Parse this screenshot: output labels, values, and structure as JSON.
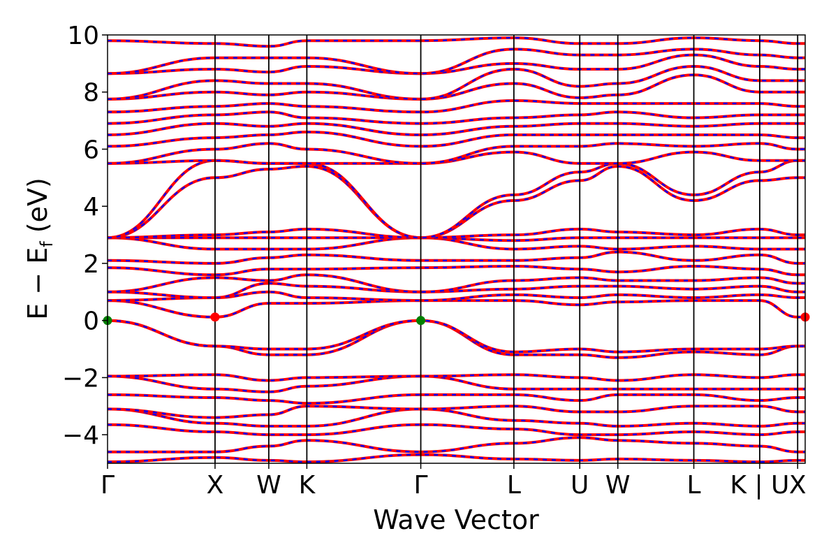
{
  "chart_data": {
    "type": "line",
    "title": "",
    "xlabel": "Wave Vector",
    "ylabel": "E − E",
    "ylabel_sub": "f",
    "ylabel_unit": " (eV)",
    "ylim": [
      -5,
      10
    ],
    "y_ticks": [
      {
        "value": -4,
        "label": "−4"
      },
      {
        "value": -2,
        "label": "−2"
      },
      {
        "value": 0,
        "label": "0"
      },
      {
        "value": 2,
        "label": "2"
      },
      {
        "value": 4,
        "label": "4"
      },
      {
        "value": 6,
        "label": "6"
      },
      {
        "value": 8,
        "label": "8"
      },
      {
        "value": 10,
        "label": "10"
      }
    ],
    "xlim": [
      0,
      6.49
    ],
    "kpoints": [
      {
        "label": "Γ",
        "x": 0.0
      },
      {
        "label": "X",
        "x": 1.0
      },
      {
        "label": "W",
        "x": 1.5
      },
      {
        "label": "K",
        "x": 1.854
      },
      {
        "label": "Γ",
        "x": 2.914
      },
      {
        "label": "L",
        "x": 3.78
      },
      {
        "label": "U",
        "x": 4.393
      },
      {
        "label": "W",
        "x": 4.747
      },
      {
        "label": "L",
        "x": 5.454
      },
      {
        "label": "K | U",
        "x": 6.067
      },
      {
        "label": "X",
        "x": 6.42
      }
    ],
    "band_color_solid": "#ff0000",
    "band_color_dashed": "#0000ff",
    "marker_color_vbm": "#008000",
    "marker_color_cbm": "#ff0000",
    "markers": [
      {
        "kind": "vbm",
        "x": 0.0,
        "y": 0.0
      },
      {
        "kind": "vbm",
        "x": 2.914,
        "y": 0.0
      },
      {
        "kind": "cbm",
        "x": 1.0,
        "y": 0.12
      },
      {
        "kind": "cbm",
        "x": 6.49,
        "y": 0.12
      }
    ],
    "bands": [
      {
        "name": "",
        "y": [
          -4.95,
          -4.8,
          -4.9,
          -4.95,
          -4.7,
          -4.85,
          -4.9,
          -4.85,
          -4.9,
          -4.95,
          -4.9
        ]
      },
      {
        "name": "",
        "y": [
          -4.6,
          -4.6,
          -4.4,
          -4.2,
          -4.6,
          -4.3,
          -4.1,
          -4.2,
          -4.3,
          -4.4,
          -4.6
        ]
      },
      {
        "name": "",
        "y": [
          -3.65,
          -3.9,
          -4.0,
          -4.0,
          -3.65,
          -3.8,
          -4.0,
          -4.0,
          -3.9,
          -4.0,
          -3.9
        ]
      },
      {
        "name": "",
        "y": [
          -3.1,
          -3.6,
          -3.7,
          -3.7,
          -3.1,
          -3.5,
          -3.6,
          -3.7,
          -3.6,
          -3.7,
          -3.6
        ]
      },
      {
        "name": "",
        "y": [
          -3.1,
          -3.4,
          -3.3,
          -3.0,
          -3.1,
          -3.0,
          -3.2,
          -3.2,
          -3.0,
          -3.0,
          -3.2
        ]
      },
      {
        "name": "",
        "y": [
          -2.6,
          -2.7,
          -2.8,
          -2.9,
          -2.6,
          -2.6,
          -2.8,
          -2.6,
          -2.6,
          -2.8,
          -2.7
        ]
      },
      {
        "name": "",
        "y": [
          -1.95,
          -2.4,
          -2.5,
          -2.3,
          -1.95,
          -2.4,
          -2.4,
          -2.4,
          -2.4,
          -2.4,
          -2.4
        ]
      },
      {
        "name": "",
        "y": [
          -1.95,
          -1.9,
          -2.1,
          -2.0,
          -1.95,
          -1.9,
          -2.0,
          -2.1,
          -1.9,
          -2.0,
          -1.9
        ]
      },
      {
        "name": "",
        "y": [
          0.0,
          -0.9,
          -1.2,
          -1.2,
          0.0,
          -1.2,
          -1.2,
          -1.3,
          -1.1,
          -1.2,
          -0.9
        ]
      },
      {
        "name": "",
        "y": [
          0.0,
          -0.9,
          -1.0,
          -1.0,
          0.0,
          -1.1,
          -1.0,
          -1.1,
          -1.0,
          -1.0,
          -0.9
        ]
      },
      {
        "name": "",
        "y": [
          0.7,
          0.12,
          0.6,
          0.6,
          0.7,
          0.7,
          0.55,
          0.65,
          0.7,
          0.7,
          0.12
        ]
      },
      {
        "name": "",
        "y": [
          0.7,
          0.8,
          1.0,
          0.8,
          0.7,
          0.9,
          0.8,
          0.9,
          0.8,
          0.9,
          0.8
        ]
      },
      {
        "name": "",
        "y": [
          1.0,
          0.8,
          1.3,
          1.2,
          1.0,
          1.1,
          1.2,
          1.2,
          1.1,
          1.2,
          1.0
        ]
      },
      {
        "name": "",
        "y": [
          1.0,
          1.5,
          1.4,
          1.6,
          1.0,
          1.4,
          1.5,
          1.4,
          1.4,
          1.5,
          1.3
        ]
      },
      {
        "name": "",
        "y": [
          1.85,
          1.6,
          1.8,
          1.8,
          1.85,
          1.9,
          1.8,
          1.7,
          1.9,
          1.8,
          1.6
        ]
      },
      {
        "name": "",
        "y": [
          2.1,
          2.0,
          2.2,
          2.3,
          2.1,
          2.1,
          2.2,
          2.4,
          2.1,
          2.3,
          2.0
        ]
      },
      {
        "name": "",
        "y": [
          2.9,
          2.5,
          2.5,
          2.5,
          2.9,
          2.5,
          2.6,
          2.5,
          2.6,
          2.5,
          2.5
        ]
      },
      {
        "name": "",
        "y": [
          2.9,
          2.9,
          2.9,
          2.9,
          2.9,
          2.8,
          2.9,
          2.9,
          2.9,
          2.9,
          2.9
        ]
      },
      {
        "name": "",
        "y": [
          2.9,
          3.0,
          3.1,
          3.2,
          2.9,
          3.0,
          3.2,
          3.1,
          3.0,
          3.2,
          3.0
        ]
      },
      {
        "name": "",
        "y": [
          2.9,
          5.0,
          5.3,
          5.4,
          2.9,
          4.2,
          4.9,
          5.4,
          4.2,
          4.9,
          5.0
        ]
      },
      {
        "name": "",
        "y": [
          2.9,
          5.6,
          5.5,
          5.5,
          2.9,
          4.4,
          5.2,
          5.5,
          4.4,
          5.2,
          5.6
        ]
      },
      {
        "name": "",
        "y": [
          5.5,
          5.6,
          5.5,
          5.5,
          5.5,
          5.9,
          5.5,
          5.5,
          5.9,
          5.6,
          5.6
        ]
      },
      {
        "name": "",
        "y": [
          5.5,
          6.0,
          6.2,
          6.0,
          5.5,
          6.1,
          6.1,
          6.2,
          6.1,
          6.2,
          6.0
        ]
      },
      {
        "name": "",
        "y": [
          6.1,
          6.4,
          6.5,
          6.6,
          6.1,
          6.5,
          6.5,
          6.5,
          6.5,
          6.5,
          6.4
        ]
      },
      {
        "name": "",
        "y": [
          6.5,
          6.9,
          6.8,
          6.9,
          6.5,
          6.8,
          6.9,
          6.9,
          6.8,
          6.9,
          6.9
        ]
      },
      {
        "name": "",
        "y": [
          6.9,
          7.2,
          7.3,
          7.1,
          6.9,
          7.1,
          7.2,
          7.3,
          7.1,
          7.2,
          7.2
        ]
      },
      {
        "name": "",
        "y": [
          7.3,
          7.5,
          7.6,
          7.5,
          7.3,
          7.7,
          7.6,
          7.6,
          7.6,
          7.6,
          7.5
        ]
      },
      {
        "name": "",
        "y": [
          7.75,
          8.0,
          7.9,
          8.0,
          7.75,
          8.3,
          7.8,
          7.9,
          8.6,
          8.0,
          8.0
        ]
      },
      {
        "name": "",
        "y": [
          7.75,
          8.4,
          8.3,
          8.3,
          7.75,
          8.8,
          8.2,
          8.3,
          8.9,
          8.4,
          8.4
        ]
      },
      {
        "name": "",
        "y": [
          8.65,
          8.8,
          8.7,
          8.9,
          8.65,
          9.0,
          8.8,
          8.8,
          9.3,
          8.9,
          8.8
        ]
      },
      {
        "name": "",
        "y": [
          8.65,
          9.2,
          9.2,
          9.2,
          8.65,
          9.5,
          9.3,
          9.3,
          9.5,
          9.3,
          9.2
        ]
      },
      {
        "name": "",
        "y": [
          9.8,
          9.7,
          9.6,
          9.8,
          9.8,
          9.9,
          9.7,
          9.7,
          9.9,
          9.8,
          9.7
        ]
      }
    ]
  }
}
